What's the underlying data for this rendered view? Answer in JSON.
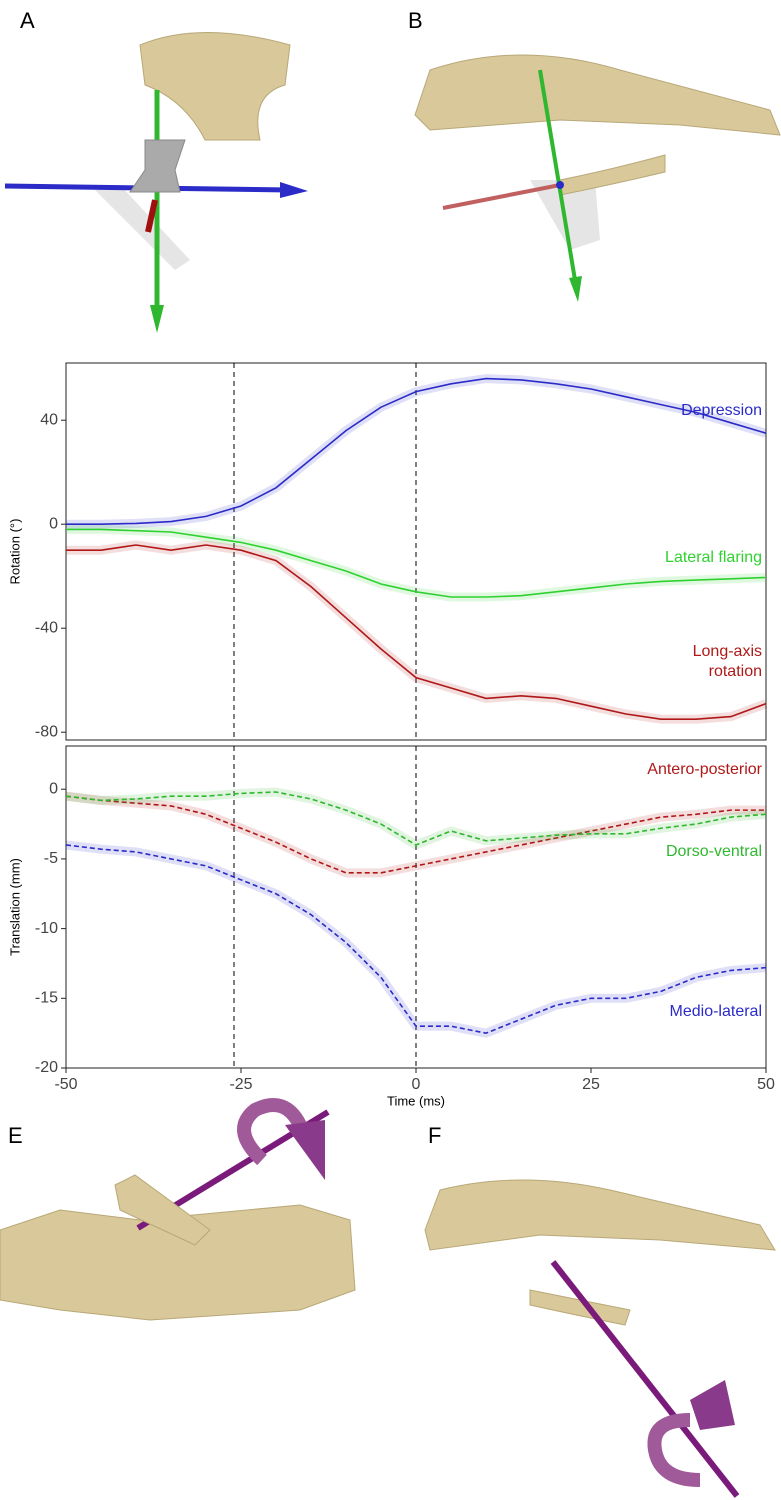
{
  "panels": [
    "A",
    "B",
    "E",
    "F"
  ],
  "chart_data": [
    {
      "type": "line",
      "ylabel": "Rotation (°)",
      "xlim": [
        -50,
        50
      ],
      "ylim": [
        -83,
        62
      ],
      "yticks": [
        -80,
        -40,
        0,
        40
      ],
      "vlines": [
        -26,
        0
      ],
      "linestyle": "solid",
      "x": [
        -50,
        -45,
        -40,
        -35,
        -30,
        -25,
        -20,
        -15,
        -10,
        -5,
        0,
        5,
        10,
        15,
        20,
        25,
        30,
        35,
        40,
        45,
        50
      ],
      "series": [
        {
          "name": "Depression",
          "color": "#2b2bc8",
          "values": [
            0,
            0,
            0.3,
            1,
            3,
            7,
            14,
            25,
            36,
            45,
            51,
            54,
            56,
            55.5,
            54,
            52,
            49,
            46,
            43,
            39,
            35
          ]
        },
        {
          "name": "Lateral flaring",
          "color": "#2fd12f",
          "values": [
            -2,
            -2,
            -2.5,
            -3,
            -5,
            -7,
            -10,
            -14,
            -18,
            -23,
            -26,
            -28,
            -28,
            -27.5,
            -26,
            -24.5,
            -23,
            -22,
            -21.5,
            -21,
            -20.5
          ]
        },
        {
          "name": "Long-axis rotation",
          "color": "#b01818",
          "values": [
            -10,
            -10,
            -8,
            -10,
            -8,
            -10,
            -14,
            -24,
            -36,
            -48,
            -59,
            -63,
            -67,
            -66,
            -67,
            -70,
            -73,
            -75,
            -75,
            -74,
            -69
          ]
        }
      ]
    },
    {
      "type": "line",
      "ylabel": "Translation (mm)",
      "xlabel": "Time (ms)",
      "xlim": [
        -50,
        50
      ],
      "xticks": [
        -50,
        -25,
        0,
        25,
        50
      ],
      "ylim": [
        -20,
        3.1
      ],
      "yticks": [
        -20,
        -15,
        -10,
        -5,
        0
      ],
      "vlines": [
        -26,
        0
      ],
      "linestyle": "dashed",
      "x": [
        -50,
        -45,
        -40,
        -35,
        -30,
        -25,
        -20,
        -15,
        -10,
        -5,
        0,
        5,
        10,
        15,
        20,
        25,
        30,
        35,
        40,
        45,
        50
      ],
      "series": [
        {
          "name": "Antero-posterior",
          "color": "#b01818",
          "values": [
            -0.5,
            -0.8,
            -1,
            -1.2,
            -1.8,
            -2.8,
            -3.8,
            -5,
            -6,
            -6,
            -5.5,
            -5,
            -4.5,
            -4,
            -3.5,
            -3,
            -2.5,
            -2,
            -1.8,
            -1.5,
            -1.5
          ]
        },
        {
          "name": "Dorso-ventral",
          "color": "#2fb82f",
          "values": [
            -0.5,
            -0.8,
            -0.7,
            -0.5,
            -0.5,
            -0.3,
            -0.2,
            -0.7,
            -1.5,
            -2.5,
            -4,
            -3,
            -3.7,
            -3.5,
            -3.3,
            -3.2,
            -3.2,
            -2.8,
            -2.5,
            -2,
            -1.8
          ]
        },
        {
          "name": "Medio-lateral",
          "color": "#2b2bc8",
          "values": [
            -4,
            -4.3,
            -4.5,
            -5,
            -5.5,
            -6.5,
            -7.5,
            -9,
            -11,
            -13.5,
            -17,
            -17,
            -17.5,
            -16.5,
            -15.5,
            -15,
            -15,
            -14.5,
            -13.5,
            -13,
            -12.8
          ]
        }
      ]
    }
  ]
}
